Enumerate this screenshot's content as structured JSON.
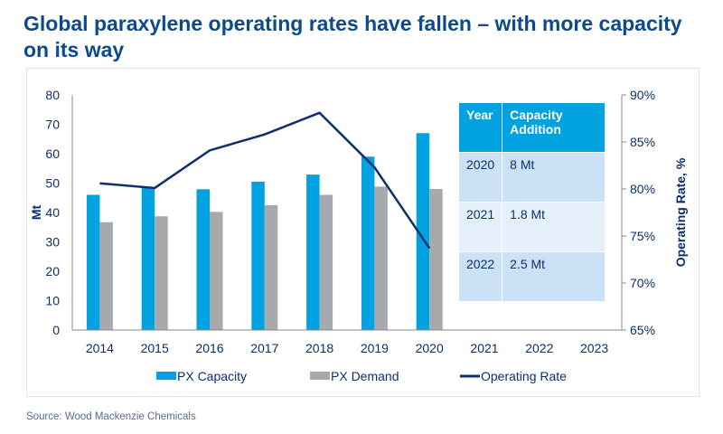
{
  "title": "Global paraxylene operating rates have fallen – with more capacity on its way",
  "source": "Source: Wood Mackenzie Chemicals",
  "chart_data": {
    "type": "bar",
    "categories": [
      "2014",
      "2015",
      "2016",
      "2017",
      "2018",
      "2019",
      "2020",
      "2021",
      "2022",
      "2023"
    ],
    "ylabel": "Mt",
    "ylabel_right": "Operating Rate, %",
    "ylim": [
      0,
      80
    ],
    "yticks": [
      "0",
      "10",
      "20",
      "30",
      "40",
      "50",
      "60",
      "70",
      "80"
    ],
    "ylim_right": [
      65,
      90
    ],
    "yticks_right": [
      "65%",
      "70%",
      "75%",
      "80%",
      "85%",
      "90%"
    ],
    "series": [
      {
        "name": "PX Capacity",
        "type": "bar",
        "color": "#00a3e0",
        "values": [
          46,
          48.4,
          47.9,
          50.5,
          52.9,
          59,
          67,
          null,
          null,
          null
        ]
      },
      {
        "name": "PX Demand",
        "type": "bar",
        "color": "#a7a9ac",
        "values": [
          36.7,
          38.7,
          40.2,
          42.5,
          46,
          48.8,
          48,
          null,
          null,
          null
        ]
      },
      {
        "name": "Operating Rate",
        "type": "line",
        "axis": "right",
        "color": "#0d2f6b",
        "values": [
          80.6,
          80.1,
          84.1,
          85.8,
          88.1,
          82.3,
          73.7,
          null,
          null,
          null
        ]
      }
    ],
    "legend": "bottom",
    "grid": false,
    "table": {
      "headers": [
        "Year",
        "Capacity Addition"
      ],
      "rows": [
        [
          "2020",
          "8 Mt"
        ],
        [
          "2021",
          "1.8 Mt"
        ],
        [
          "2022",
          "2.5 Mt"
        ]
      ]
    }
  }
}
